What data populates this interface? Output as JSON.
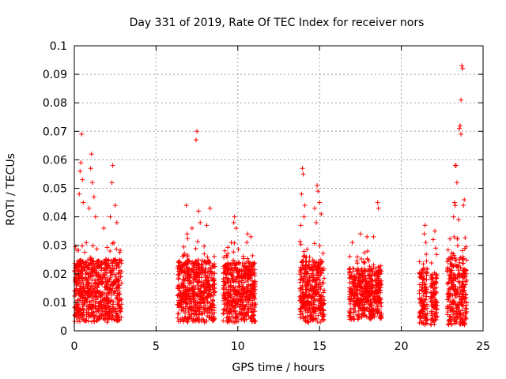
{
  "chart_data": {
    "type": "scatter",
    "title": "Day 331 of 2019, Rate Of TEC Index for receiver nors",
    "xlabel": "GPS time / hours",
    "ylabel": "ROTI / TECUs",
    "xlim": [
      0,
      25
    ],
    "ylim": [
      0,
      0.1
    ],
    "grid": true,
    "marker": "+",
    "color": "#ff0000",
    "x_ticks": [
      0,
      5,
      10,
      15,
      20,
      25
    ],
    "x_tick_labels": [
      "0",
      "5",
      "10",
      "15",
      "20",
      "25"
    ],
    "y_ticks": [
      0,
      0.01,
      0.02,
      0.03,
      0.04,
      0.05,
      0.06,
      0.07,
      0.08,
      0.09,
      0.1
    ],
    "y_tick_labels": [
      "0",
      "0.01",
      "0.02",
      "0.03",
      "0.04",
      "0.05",
      "0.06",
      "0.07",
      "0.08",
      "0.09",
      "0.1"
    ],
    "series": [
      {
        "name": "ROTI",
        "clusters": [
          {
            "x_range": [
              0.0,
              2.9
            ],
            "y_base": [
              0.003,
              0.025
            ]
          },
          {
            "x_range": [
              6.3,
              8.6
            ],
            "y_base": [
              0.003,
              0.025
            ]
          },
          {
            "x_range": [
              9.1,
              11.1
            ],
            "y_base": [
              0.003,
              0.024
            ]
          },
          {
            "x_range": [
              13.8,
              15.3
            ],
            "y_base": [
              0.003,
              0.025
            ]
          },
          {
            "x_range": [
              16.8,
              18.8
            ],
            "y_base": [
              0.004,
              0.022
            ]
          },
          {
            "x_range": [
              21.1,
              21.6
            ],
            "y_base": [
              0.002,
              0.022
            ]
          },
          {
            "x_range": [
              21.8,
              22.2
            ],
            "y_base": [
              0.002,
              0.02
            ]
          },
          {
            "x_range": [
              22.8,
              24.0
            ],
            "y_base": [
              0.002,
              0.026
            ]
          }
        ],
        "highlights": [
          {
            "x": 0.45,
            "y": 0.069
          },
          {
            "x": 0.4,
            "y": 0.059
          },
          {
            "x": 0.35,
            "y": 0.056
          },
          {
            "x": 0.5,
            "y": 0.053
          },
          {
            "x": 0.3,
            "y": 0.048
          },
          {
            "x": 0.55,
            "y": 0.045
          },
          {
            "x": 1.05,
            "y": 0.062
          },
          {
            "x": 1.0,
            "y": 0.057
          },
          {
            "x": 1.1,
            "y": 0.052
          },
          {
            "x": 1.2,
            "y": 0.047
          },
          {
            "x": 0.9,
            "y": 0.043
          },
          {
            "x": 1.3,
            "y": 0.04
          },
          {
            "x": 2.35,
            "y": 0.058
          },
          {
            "x": 2.3,
            "y": 0.052
          },
          {
            "x": 2.5,
            "y": 0.044
          },
          {
            "x": 2.2,
            "y": 0.04
          },
          {
            "x": 1.8,
            "y": 0.036
          },
          {
            "x": 2.6,
            "y": 0.038
          },
          {
            "x": 7.5,
            "y": 0.07
          },
          {
            "x": 7.45,
            "y": 0.067
          },
          {
            "x": 6.85,
            "y": 0.044
          },
          {
            "x": 8.3,
            "y": 0.043
          },
          {
            "x": 7.6,
            "y": 0.042
          },
          {
            "x": 7.7,
            "y": 0.038
          },
          {
            "x": 7.2,
            "y": 0.036
          },
          {
            "x": 8.1,
            "y": 0.037
          },
          {
            "x": 6.9,
            "y": 0.034
          },
          {
            "x": 9.8,
            "y": 0.04
          },
          {
            "x": 9.75,
            "y": 0.038
          },
          {
            "x": 9.9,
            "y": 0.036
          },
          {
            "x": 10.6,
            "y": 0.034
          },
          {
            "x": 10.8,
            "y": 0.033
          },
          {
            "x": 9.6,
            "y": 0.031
          },
          {
            "x": 13.95,
            "y": 0.057
          },
          {
            "x": 14.0,
            "y": 0.055
          },
          {
            "x": 13.9,
            "y": 0.048
          },
          {
            "x": 14.1,
            "y": 0.044
          },
          {
            "x": 14.05,
            "y": 0.04
          },
          {
            "x": 13.85,
            "y": 0.037
          },
          {
            "x": 14.85,
            "y": 0.051
          },
          {
            "x": 14.9,
            "y": 0.049
          },
          {
            "x": 15.0,
            "y": 0.045
          },
          {
            "x": 14.7,
            "y": 0.043
          },
          {
            "x": 15.1,
            "y": 0.041
          },
          {
            "x": 14.8,
            "y": 0.038
          },
          {
            "x": 18.55,
            "y": 0.045
          },
          {
            "x": 18.6,
            "y": 0.043
          },
          {
            "x": 17.5,
            "y": 0.034
          },
          {
            "x": 17.9,
            "y": 0.033
          },
          {
            "x": 18.3,
            "y": 0.033
          },
          {
            "x": 17.0,
            "y": 0.031
          },
          {
            "x": 21.45,
            "y": 0.037
          },
          {
            "x": 21.4,
            "y": 0.034
          },
          {
            "x": 21.5,
            "y": 0.031
          },
          {
            "x": 22.05,
            "y": 0.035
          },
          {
            "x": 21.95,
            "y": 0.032
          },
          {
            "x": 22.1,
            "y": 0.029
          },
          {
            "x": 23.7,
            "y": 0.093
          },
          {
            "x": 23.75,
            "y": 0.092
          },
          {
            "x": 23.65,
            "y": 0.081
          },
          {
            "x": 23.6,
            "y": 0.072
          },
          {
            "x": 23.55,
            "y": 0.071
          },
          {
            "x": 23.65,
            "y": 0.069
          },
          {
            "x": 23.3,
            "y": 0.058
          },
          {
            "x": 23.35,
            "y": 0.058
          },
          {
            "x": 23.4,
            "y": 0.052
          },
          {
            "x": 23.25,
            "y": 0.045
          },
          {
            "x": 23.3,
            "y": 0.044
          },
          {
            "x": 23.85,
            "y": 0.046
          },
          {
            "x": 23.8,
            "y": 0.044
          },
          {
            "x": 23.2,
            "y": 0.04
          },
          {
            "x": 23.5,
            "y": 0.039
          }
        ]
      }
    ]
  }
}
